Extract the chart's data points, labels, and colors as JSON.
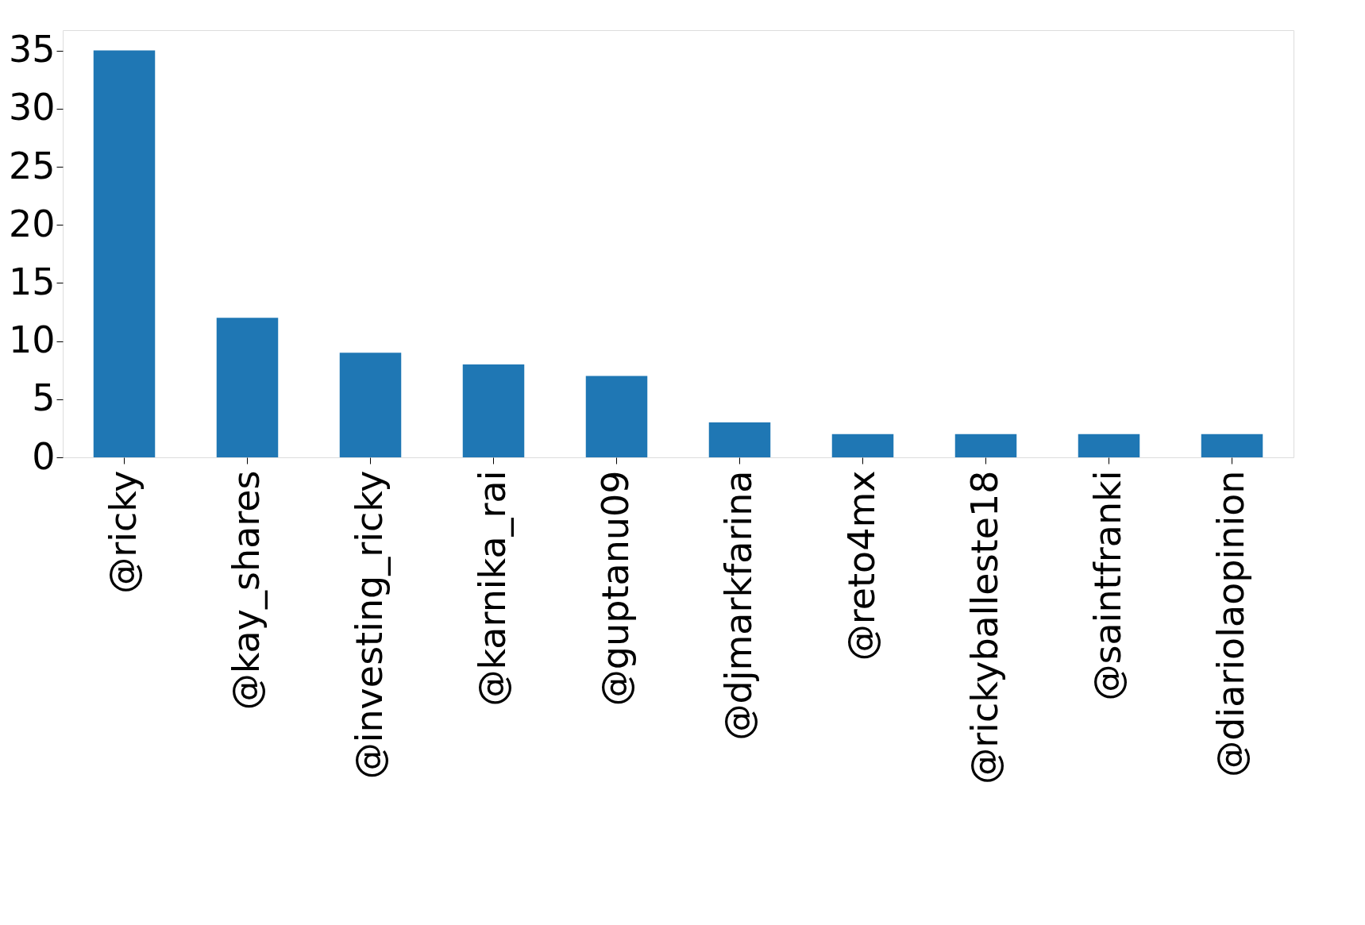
{
  "chart_data": {
    "type": "bar",
    "categories": [
      "@ricky",
      "@kay_shares",
      "@investing_ricky",
      "@karnika_rai",
      "@guptanu09",
      "@djmarkfarina",
      "@reto4mx",
      "@rickyballeste18",
      "@saintfranki",
      "@diariolaopinion"
    ],
    "values": [
      35,
      12,
      9,
      8,
      7,
      3,
      2,
      2,
      2,
      2
    ],
    "color": "#1f77b4",
    "ylim": [
      0,
      36.75
    ],
    "yticks": [
      0,
      5,
      10,
      15,
      20,
      25,
      30,
      35
    ],
    "grid": false
  }
}
